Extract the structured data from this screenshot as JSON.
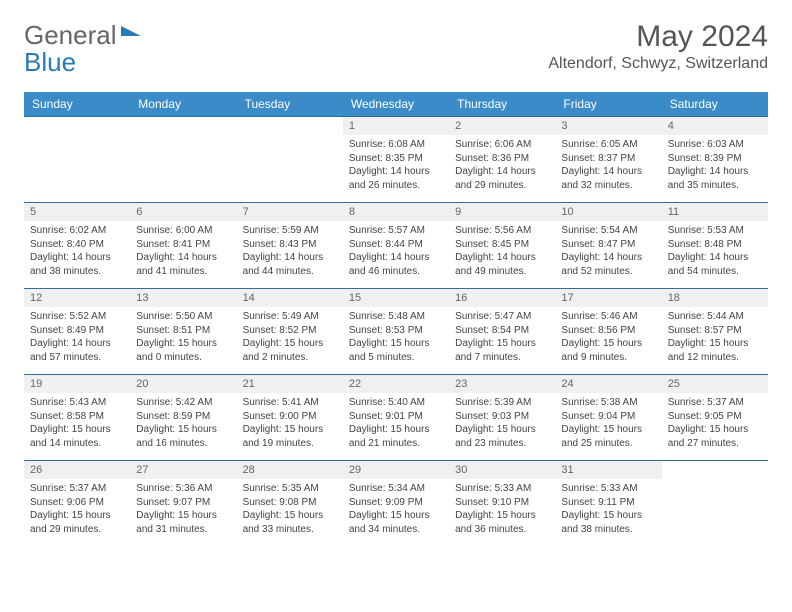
{
  "brand": {
    "part1": "General",
    "part2": "Blue"
  },
  "title": "May 2024",
  "location": "Altendorf, Schwyz, Switzerland",
  "day_headers": [
    "Sunday",
    "Monday",
    "Tuesday",
    "Wednesday",
    "Thursday",
    "Friday",
    "Saturday"
  ],
  "colors": {
    "header_bg": "#3b8bc9",
    "header_fg": "#ffffff",
    "daynum_bg": "#eef0f1",
    "rule": "#2f6fa0",
    "logo_blue": "#2a7ab8"
  },
  "weeks": [
    [
      null,
      null,
      null,
      {
        "n": "1",
        "sr": "Sunrise: 6:08 AM",
        "ss": "Sunset: 8:35 PM",
        "d1": "Daylight: 14 hours",
        "d2": "and 26 minutes."
      },
      {
        "n": "2",
        "sr": "Sunrise: 6:06 AM",
        "ss": "Sunset: 8:36 PM",
        "d1": "Daylight: 14 hours",
        "d2": "and 29 minutes."
      },
      {
        "n": "3",
        "sr": "Sunrise: 6:05 AM",
        "ss": "Sunset: 8:37 PM",
        "d1": "Daylight: 14 hours",
        "d2": "and 32 minutes."
      },
      {
        "n": "4",
        "sr": "Sunrise: 6:03 AM",
        "ss": "Sunset: 8:39 PM",
        "d1": "Daylight: 14 hours",
        "d2": "and 35 minutes."
      }
    ],
    [
      {
        "n": "5",
        "sr": "Sunrise: 6:02 AM",
        "ss": "Sunset: 8:40 PM",
        "d1": "Daylight: 14 hours",
        "d2": "and 38 minutes."
      },
      {
        "n": "6",
        "sr": "Sunrise: 6:00 AM",
        "ss": "Sunset: 8:41 PM",
        "d1": "Daylight: 14 hours",
        "d2": "and 41 minutes."
      },
      {
        "n": "7",
        "sr": "Sunrise: 5:59 AM",
        "ss": "Sunset: 8:43 PM",
        "d1": "Daylight: 14 hours",
        "d2": "and 44 minutes."
      },
      {
        "n": "8",
        "sr": "Sunrise: 5:57 AM",
        "ss": "Sunset: 8:44 PM",
        "d1": "Daylight: 14 hours",
        "d2": "and 46 minutes."
      },
      {
        "n": "9",
        "sr": "Sunrise: 5:56 AM",
        "ss": "Sunset: 8:45 PM",
        "d1": "Daylight: 14 hours",
        "d2": "and 49 minutes."
      },
      {
        "n": "10",
        "sr": "Sunrise: 5:54 AM",
        "ss": "Sunset: 8:47 PM",
        "d1": "Daylight: 14 hours",
        "d2": "and 52 minutes."
      },
      {
        "n": "11",
        "sr": "Sunrise: 5:53 AM",
        "ss": "Sunset: 8:48 PM",
        "d1": "Daylight: 14 hours",
        "d2": "and 54 minutes."
      }
    ],
    [
      {
        "n": "12",
        "sr": "Sunrise: 5:52 AM",
        "ss": "Sunset: 8:49 PM",
        "d1": "Daylight: 14 hours",
        "d2": "and 57 minutes."
      },
      {
        "n": "13",
        "sr": "Sunrise: 5:50 AM",
        "ss": "Sunset: 8:51 PM",
        "d1": "Daylight: 15 hours",
        "d2": "and 0 minutes."
      },
      {
        "n": "14",
        "sr": "Sunrise: 5:49 AM",
        "ss": "Sunset: 8:52 PM",
        "d1": "Daylight: 15 hours",
        "d2": "and 2 minutes."
      },
      {
        "n": "15",
        "sr": "Sunrise: 5:48 AM",
        "ss": "Sunset: 8:53 PM",
        "d1": "Daylight: 15 hours",
        "d2": "and 5 minutes."
      },
      {
        "n": "16",
        "sr": "Sunrise: 5:47 AM",
        "ss": "Sunset: 8:54 PM",
        "d1": "Daylight: 15 hours",
        "d2": "and 7 minutes."
      },
      {
        "n": "17",
        "sr": "Sunrise: 5:46 AM",
        "ss": "Sunset: 8:56 PM",
        "d1": "Daylight: 15 hours",
        "d2": "and 9 minutes."
      },
      {
        "n": "18",
        "sr": "Sunrise: 5:44 AM",
        "ss": "Sunset: 8:57 PM",
        "d1": "Daylight: 15 hours",
        "d2": "and 12 minutes."
      }
    ],
    [
      {
        "n": "19",
        "sr": "Sunrise: 5:43 AM",
        "ss": "Sunset: 8:58 PM",
        "d1": "Daylight: 15 hours",
        "d2": "and 14 minutes."
      },
      {
        "n": "20",
        "sr": "Sunrise: 5:42 AM",
        "ss": "Sunset: 8:59 PM",
        "d1": "Daylight: 15 hours",
        "d2": "and 16 minutes."
      },
      {
        "n": "21",
        "sr": "Sunrise: 5:41 AM",
        "ss": "Sunset: 9:00 PM",
        "d1": "Daylight: 15 hours",
        "d2": "and 19 minutes."
      },
      {
        "n": "22",
        "sr": "Sunrise: 5:40 AM",
        "ss": "Sunset: 9:01 PM",
        "d1": "Daylight: 15 hours",
        "d2": "and 21 minutes."
      },
      {
        "n": "23",
        "sr": "Sunrise: 5:39 AM",
        "ss": "Sunset: 9:03 PM",
        "d1": "Daylight: 15 hours",
        "d2": "and 23 minutes."
      },
      {
        "n": "24",
        "sr": "Sunrise: 5:38 AM",
        "ss": "Sunset: 9:04 PM",
        "d1": "Daylight: 15 hours",
        "d2": "and 25 minutes."
      },
      {
        "n": "25",
        "sr": "Sunrise: 5:37 AM",
        "ss": "Sunset: 9:05 PM",
        "d1": "Daylight: 15 hours",
        "d2": "and 27 minutes."
      }
    ],
    [
      {
        "n": "26",
        "sr": "Sunrise: 5:37 AM",
        "ss": "Sunset: 9:06 PM",
        "d1": "Daylight: 15 hours",
        "d2": "and 29 minutes."
      },
      {
        "n": "27",
        "sr": "Sunrise: 5:36 AM",
        "ss": "Sunset: 9:07 PM",
        "d1": "Daylight: 15 hours",
        "d2": "and 31 minutes."
      },
      {
        "n": "28",
        "sr": "Sunrise: 5:35 AM",
        "ss": "Sunset: 9:08 PM",
        "d1": "Daylight: 15 hours",
        "d2": "and 33 minutes."
      },
      {
        "n": "29",
        "sr": "Sunrise: 5:34 AM",
        "ss": "Sunset: 9:09 PM",
        "d1": "Daylight: 15 hours",
        "d2": "and 34 minutes."
      },
      {
        "n": "30",
        "sr": "Sunrise: 5:33 AM",
        "ss": "Sunset: 9:10 PM",
        "d1": "Daylight: 15 hours",
        "d2": "and 36 minutes."
      },
      {
        "n": "31",
        "sr": "Sunrise: 5:33 AM",
        "ss": "Sunset: 9:11 PM",
        "d1": "Daylight: 15 hours",
        "d2": "and 38 minutes."
      },
      null
    ]
  ]
}
